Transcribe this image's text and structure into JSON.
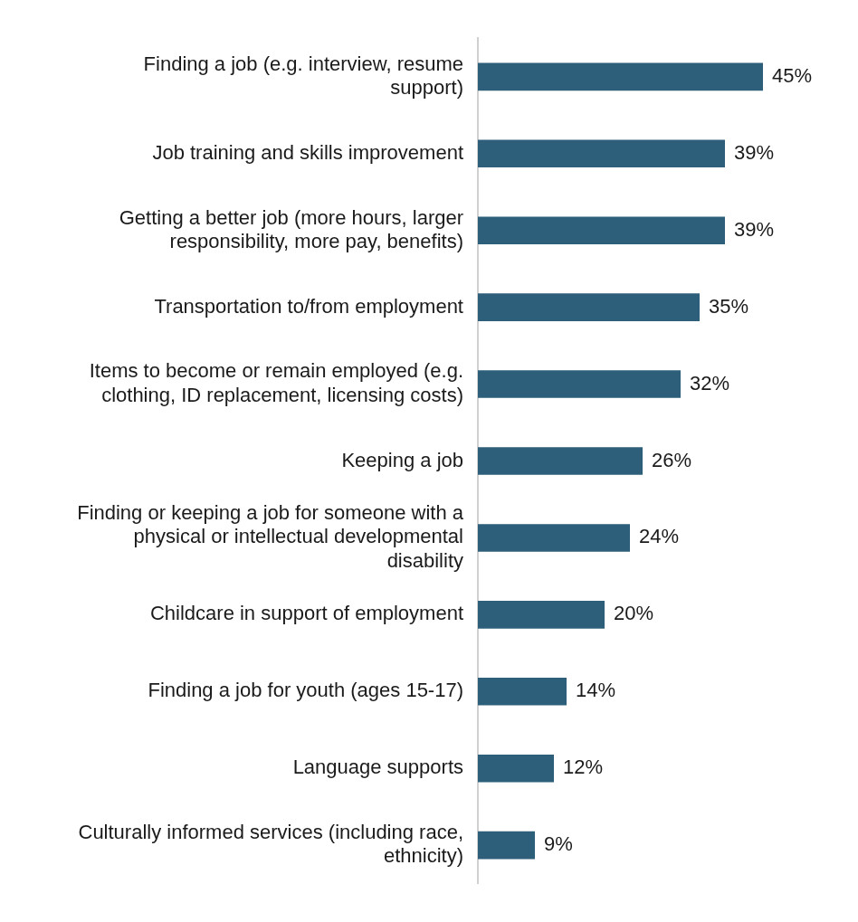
{
  "chart_data": {
    "type": "bar",
    "orientation": "horizontal",
    "categories": [
      "Finding a job (e.g. interview, resume support)",
      "Job training and skills improvement",
      "Getting a better job (more hours, larger responsibility, more pay, benefits)",
      "Transportation to/from employment",
      "Items to become or remain employed (e.g. clothing, ID replacement, licensing costs)",
      "Keeping a job",
      "Finding or keeping a job for someone with a physical or intellectual developmental disability",
      "Childcare in support of employment",
      "Finding a job for youth (ages 15-17)",
      "Language supports",
      "Culturally informed services (including race, ethnicity)"
    ],
    "values": [
      45,
      39,
      39,
      35,
      32,
      26,
      24,
      20,
      14,
      12,
      9
    ],
    "value_labels": [
      "45%",
      "39%",
      "39%",
      "35%",
      "32%",
      "26%",
      "24%",
      "20%",
      "14%",
      "12%",
      "9%"
    ],
    "color": "#2e5f7a",
    "legend": false
  }
}
